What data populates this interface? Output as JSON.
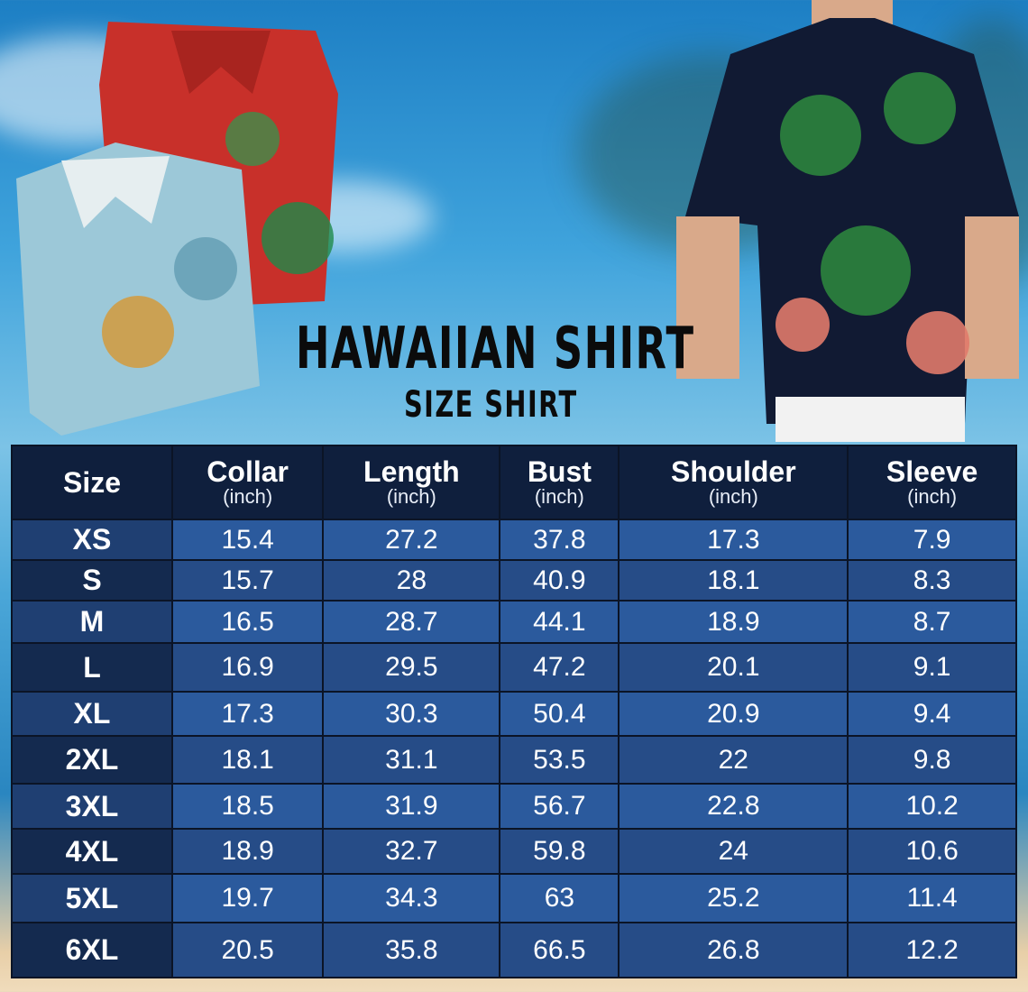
{
  "title": "HAWAIIAN SHIRT",
  "subtitle": "SIZE SHIRT",
  "table": {
    "headers": [
      {
        "label": "Size",
        "unit": ""
      },
      {
        "label": "Collar",
        "unit": "(inch)"
      },
      {
        "label": "Length",
        "unit": "(inch)"
      },
      {
        "label": "Bust",
        "unit": "(inch)"
      },
      {
        "label": "Shoulder",
        "unit": "(inch)"
      },
      {
        "label": "Sleeve",
        "unit": "(inch)"
      }
    ],
    "rows": [
      [
        "XS",
        "15.4",
        "27.2",
        "37.8",
        "17.3",
        "7.9"
      ],
      [
        "S",
        "15.7",
        "28",
        "40.9",
        "18.1",
        "8.3"
      ],
      [
        "M",
        "16.5",
        "28.7",
        "44.1",
        "18.9",
        "8.7"
      ],
      [
        "L",
        "16.9",
        "29.5",
        "47.2",
        "20.1",
        "9.1"
      ],
      [
        "XL",
        "17.3",
        "30.3",
        "50.4",
        "20.9",
        "9.4"
      ],
      [
        "2XL",
        "18.1",
        "31.1",
        "53.5",
        "22",
        "9.8"
      ],
      [
        "3XL",
        "18.5",
        "31.9",
        "56.7",
        "22.8",
        "10.2"
      ],
      [
        "4XL",
        "18.9",
        "32.7",
        "59.8",
        "24",
        "10.6"
      ],
      [
        "5XL",
        "19.7",
        "34.3",
        "63",
        "25.2",
        "11.4"
      ],
      [
        "6XL",
        "20.5",
        "35.8",
        "66.5",
        "26.8",
        "12.2"
      ]
    ]
  },
  "images": [
    "folded-red-hawaiian-shirt",
    "folded-light-blue-hawaiian-shirt",
    "model-wearing-navy-flamingo-shirt"
  ]
}
